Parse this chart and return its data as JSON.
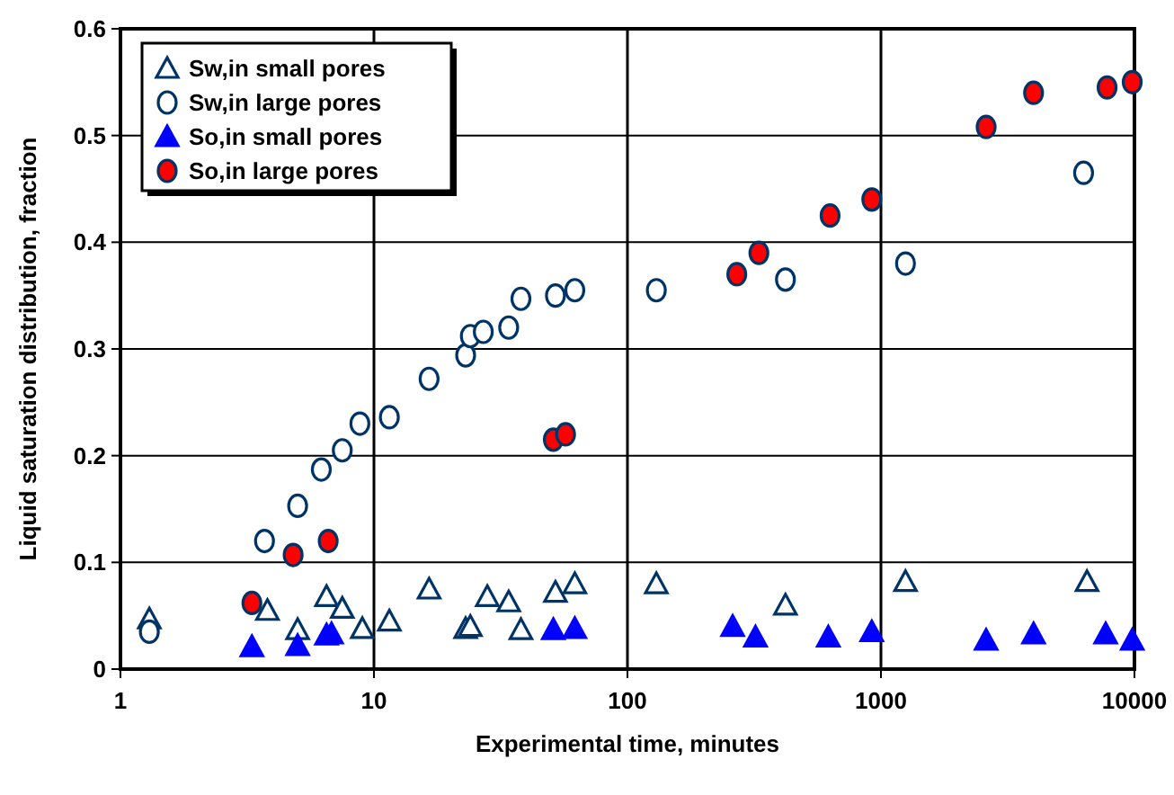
{
  "chart_data": {
    "type": "scatter",
    "xlabel": "Experimental time, minutes",
    "ylabel": "Liquid saturation distribution, fraction",
    "log": "x",
    "grid": true,
    "legend": "top left",
    "xlim": [
      1,
      10000
    ],
    "xticks": [
      1,
      10,
      100,
      1000,
      10000
    ],
    "ylim": [
      0,
      0.6
    ],
    "yticks": [
      0,
      0.1,
      0.2,
      0.3,
      0.4,
      0.5,
      0.6
    ],
    "series": [
      {
        "name": "Sw,in small pores",
        "color": "#003366",
        "marker": "triangle",
        "x": [
          1.3,
          3.8,
          5,
          6.5,
          7.5,
          9,
          11.5,
          16.5,
          23,
          24,
          28,
          34,
          38,
          52,
          62,
          130,
          420,
          1250,
          6500
        ],
        "values": [
          0.047,
          0.055,
          0.037,
          0.068,
          0.057,
          0.038,
          0.045,
          0.075,
          0.038,
          0.04,
          0.068,
          0.063,
          0.037,
          0.072,
          0.08,
          0.08,
          0.06,
          0.082,
          0.082
        ]
      },
      {
        "name": "Sw,in large pores",
        "color": "#003366",
        "marker": "circle",
        "x": [
          1.3,
          3.7,
          5,
          6.2,
          7.5,
          8.8,
          11.5,
          16.5,
          23,
          24,
          27,
          34,
          38,
          52,
          62,
          130,
          420,
          1250,
          6300
        ],
        "values": [
          0.035,
          0.12,
          0.153,
          0.187,
          0.205,
          0.23,
          0.236,
          0.272,
          0.294,
          0.312,
          0.316,
          0.32,
          0.347,
          0.35,
          0.355,
          0.355,
          0.365,
          0.38,
          0.465
        ]
      },
      {
        "name": "So,in small pores",
        "color": "#0000ff",
        "marker": "triangle",
        "x": [
          3.3,
          5,
          6.5,
          6.8,
          51,
          62,
          260,
          320,
          620,
          920,
          2600,
          4000,
          7700,
          9800
        ],
        "values": [
          0.021,
          0.022,
          0.032,
          0.033,
          0.037,
          0.038,
          0.04,
          0.03,
          0.03,
          0.035,
          0.027,
          0.033,
          0.033,
          0.027
        ]
      },
      {
        "name": "So,in large pores",
        "color": "#ff0000",
        "marker": "circle",
        "x": [
          3.3,
          4.8,
          6.6,
          51,
          57,
          270,
          330,
          630,
          920,
          2600,
          4000,
          7800,
          9800
        ],
        "values": [
          0.062,
          0.107,
          0.12,
          0.215,
          0.22,
          0.37,
          0.39,
          0.425,
          0.44,
          0.508,
          0.54,
          0.545,
          0.55
        ]
      }
    ]
  }
}
